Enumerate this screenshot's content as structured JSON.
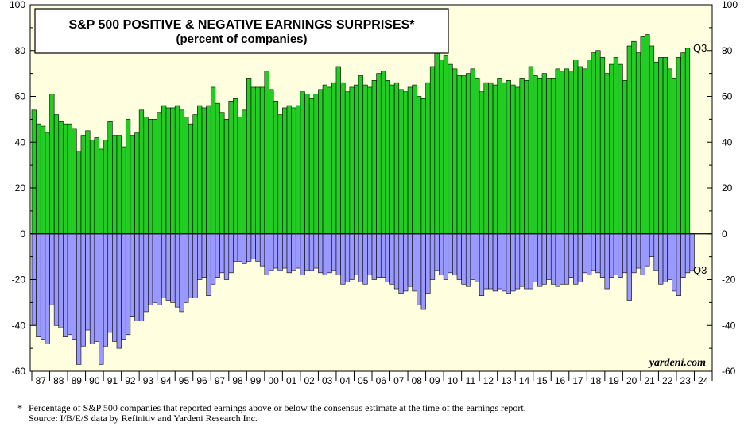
{
  "chart_data": {
    "type": "bar",
    "title": "S&P 500 POSITIVE & NEGATIVE EARNINGS SURPRISES*",
    "subtitle": "(percent of companies)",
    "ylim": [
      -60,
      100
    ],
    "y_ticks": [
      -60,
      -40,
      -20,
      0,
      20,
      40,
      60,
      80,
      100
    ],
    "x_tick_labels": [
      "87",
      "88",
      "89",
      "90",
      "91",
      "92",
      "93",
      "94",
      "95",
      "96",
      "97",
      "98",
      "99",
      "00",
      "01",
      "02",
      "03",
      "04",
      "05",
      "06",
      "07",
      "08",
      "09",
      "10",
      "11",
      "12",
      "13",
      "14",
      "15",
      "16",
      "17",
      "18",
      "19",
      "20",
      "21",
      "22",
      "23",
      "24"
    ],
    "start_quarter": "1987 Q1",
    "end_quarter": "2023 Q3",
    "grid": false,
    "brand": "yardeni.com",
    "series": [
      {
        "label": "Q3",
        "color": "#22cc22",
        "values": [
          54,
          48,
          47,
          44,
          61,
          52,
          49,
          48,
          48,
          46,
          36,
          43,
          45,
          41,
          42,
          37,
          41,
          49,
          43,
          43,
          38,
          50,
          43,
          44,
          54,
          51,
          50,
          50,
          53,
          56,
          55,
          55,
          56,
          54,
          51,
          48,
          52,
          56,
          55,
          56,
          64,
          57,
          53,
          50,
          58,
          59,
          51,
          54,
          68,
          64,
          64,
          64,
          71,
          63,
          58,
          52,
          55,
          56,
          55,
          56,
          62,
          61,
          59,
          61,
          63,
          65,
          64,
          66,
          73,
          66,
          62,
          64,
          65,
          69,
          65,
          64,
          67,
          70,
          71,
          67,
          65,
          66,
          63,
          62,
          64,
          65,
          60,
          59,
          66,
          73,
          80,
          76,
          78,
          74,
          72,
          69,
          69,
          70,
          72,
          68,
          62,
          66,
          66,
          65,
          68,
          66,
          67,
          65,
          64,
          68,
          67,
          73,
          69,
          68,
          70,
          68,
          68,
          72,
          71,
          72,
          71,
          76,
          73,
          72,
          76,
          79,
          80,
          77,
          70,
          74,
          77,
          74,
          67,
          82,
          84,
          79,
          86,
          87,
          82,
          75,
          77,
          77,
          72,
          68,
          77,
          79,
          81
        ]
      },
      {
        "label": "Q3",
        "color": "#9999ff",
        "values": [
          -40,
          -45,
          -46,
          -48,
          -31,
          -40,
          -41,
          -45,
          -44,
          -46,
          -57,
          -49,
          -42,
          -48,
          -47,
          -57,
          -49,
          -43,
          -47,
          -50,
          -46,
          -44,
          -36,
          -38,
          -38,
          -34,
          -31,
          -30,
          -31,
          -28,
          -29,
          -30,
          -32,
          -34,
          -30,
          -28,
          -28,
          -20,
          -19,
          -27,
          -22,
          -19,
          -17,
          -20,
          -17,
          -12,
          -12,
          -13,
          -12,
          -11,
          -12,
          -14,
          -18,
          -16,
          -15,
          -16,
          -15,
          -17,
          -16,
          -15,
          -18,
          -16,
          -16,
          -15,
          -17,
          -18,
          -17,
          -16,
          -18,
          -22,
          -21,
          -20,
          -18,
          -21,
          -22,
          -18,
          -20,
          -19,
          -19,
          -21,
          -22,
          -24,
          -26,
          -25,
          -23,
          -25,
          -31,
          -33,
          -26,
          -20,
          -16,
          -18,
          -20,
          -17,
          -18,
          -20,
          -22,
          -23,
          -20,
          -21,
          -27,
          -24,
          -24,
          -25,
          -24,
          -25,
          -26,
          -25,
          -24,
          -23,
          -24,
          -24,
          -21,
          -23,
          -22,
          -20,
          -22,
          -23,
          -22,
          -22,
          -19,
          -22,
          -21,
          -17,
          -18,
          -16,
          -17,
          -19,
          -24,
          -19,
          -18,
          -19,
          -17,
          -29,
          -17,
          -15,
          -18,
          -14,
          -10,
          -16,
          -22,
          -21,
          -20,
          -25,
          -27,
          -19,
          -17,
          -16
        ]
      }
    ]
  },
  "footnote": {
    "star": "*",
    "line1": "Percentage of S&P 500 companies that reported earnings above or below the consensus estimate at the time of the earnings report.",
    "line2": "Source: I/B/E/S data by Refinitiv and Yardeni Research Inc."
  },
  "colors": {
    "plot_background": "#ffffe0",
    "positive": "#22cc22",
    "negative": "#9999ff"
  }
}
